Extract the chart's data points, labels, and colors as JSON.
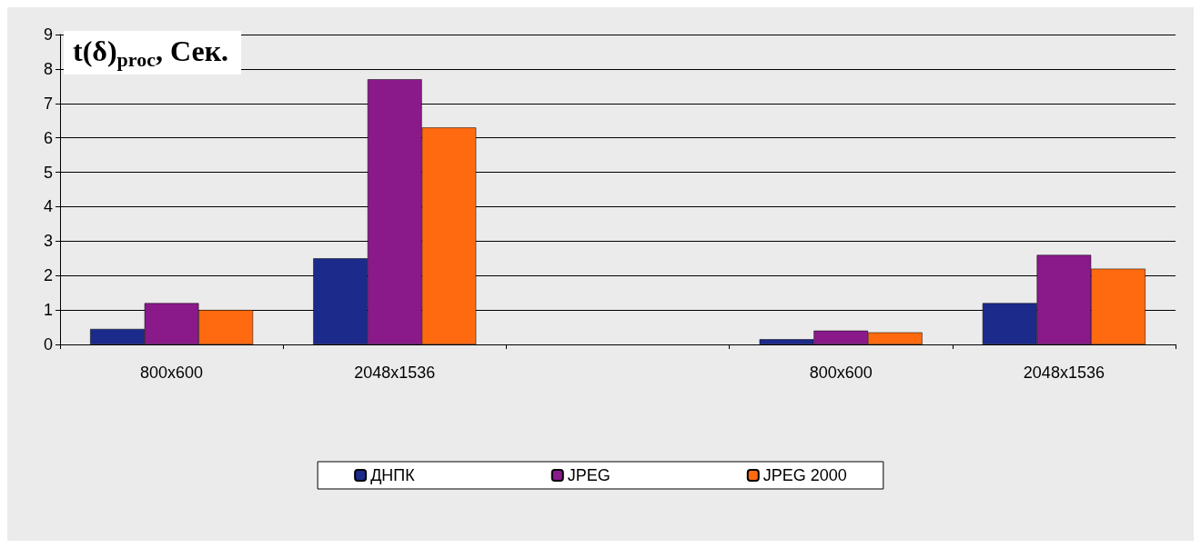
{
  "chart_data": {
    "type": "bar",
    "title": "t(δ)$_{proc}$, Сек.",
    "categories": [
      "800x600",
      "2048x1536",
      null,
      "800x600",
      "2048x1536"
    ],
    "series": [
      {
        "name": "ДНПК",
        "color": "#1c2a8c",
        "values": [
          0.45,
          2.5,
          null,
          0.15,
          1.2
        ]
      },
      {
        "name": "JPEG",
        "color": "#8a1a8a",
        "values": [
          1.2,
          7.7,
          null,
          0.4,
          2.6
        ]
      },
      {
        "name": "JPEG 2000",
        "color": "#ff6a10",
        "values": [
          1.0,
          6.3,
          null,
          0.35,
          2.2
        ]
      }
    ],
    "ylim": [
      0,
      9
    ],
    "yticks": [
      0,
      1,
      2,
      3,
      4,
      5,
      6,
      7,
      8,
      9
    ],
    "grid": "y",
    "legend": "bottom"
  }
}
